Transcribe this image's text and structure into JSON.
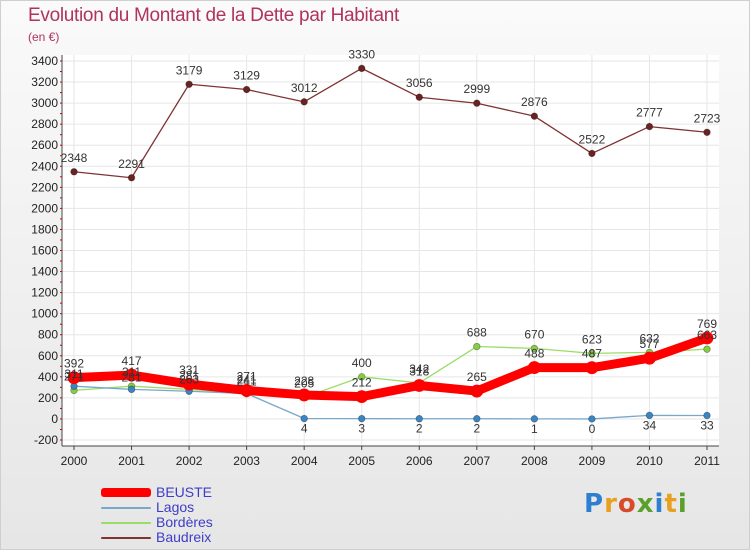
{
  "title": "Evolution du Montant de la Dette par Habitant",
  "subtitle": "(en €)",
  "logo": "Proxiti",
  "colors": {
    "title": "#b0335e",
    "legend_text": "#3d3dc8",
    "axis_text": "#222222",
    "grid": "#e6e6e6"
  },
  "chart_data": {
    "type": "line",
    "x": [
      "2000",
      "2001",
      "2002",
      "2003",
      "2004",
      "2005",
      "2006",
      "2007",
      "2008",
      "2009",
      "2010",
      "2011"
    ],
    "ylim": [
      -200,
      3400
    ],
    "yticks": [
      -200,
      0,
      200,
      400,
      600,
      800,
      1000,
      1200,
      1400,
      1600,
      1800,
      2000,
      2200,
      2400,
      2600,
      2800,
      3000,
      3200,
      3400
    ],
    "grid": true,
    "legend_position": "bottom-left",
    "series": [
      {
        "name": "BEUSTE",
        "color": "#ff0000",
        "marker": "#ff0000",
        "values": [
          392,
          417,
          331,
          271,
          228,
          212,
          318,
          265,
          488,
          487,
          577,
          769
        ],
        "show_labels": true
      },
      {
        "name": "Lagos",
        "color": "#7aa8c9",
        "marker": "#3a86c4",
        "values": [
          311,
          281,
          263,
          241,
          4,
          3,
          2,
          2,
          1,
          0,
          34,
          33
        ],
        "show_labels": true
      },
      {
        "name": "Bordères",
        "color": "#99dd66",
        "marker": "#88cc44",
        "values": [
          271,
          311,
          281,
          241,
          205,
          400,
          342,
          688,
          670,
          623,
          632,
          663
        ],
        "show_labels": true
      },
      {
        "name": "Baudreix",
        "color": "#803333",
        "marker": "#6b2222",
        "values": [
          2348,
          2291,
          3179,
          3129,
          3012,
          3330,
          3056,
          2999,
          2876,
          2522,
          2777,
          2723
        ],
        "show_labels": true
      }
    ]
  }
}
